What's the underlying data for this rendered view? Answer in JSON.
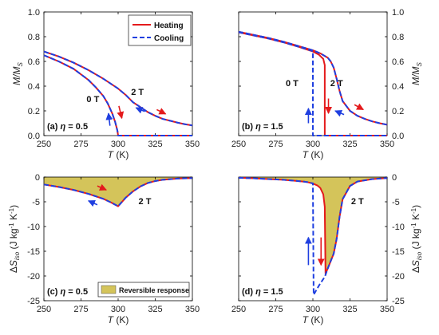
{
  "chart_data": [
    {
      "id": "a",
      "type": "line",
      "panel_label": "(a) η = 0.5",
      "xlabel": "T (K)",
      "ylabel": "M/M_S",
      "xlim": [
        250,
        350
      ],
      "ylim": [
        0,
        1
      ],
      "xticks": [
        250,
        275,
        300,
        325,
        350
      ],
      "yticks": [
        0,
        0.2,
        0.4,
        0.6,
        0.8,
        1.0
      ],
      "ytick_labels": [
        "0.0",
        "0.2",
        "0.4",
        "0.6",
        "0.8",
        "1.0"
      ],
      "y_axis_side": "left",
      "legend": {
        "placement": "top-right",
        "entries": [
          "Heating",
          "Cooling"
        ]
      },
      "series": [
        {
          "name": "Heating",
          "style": "solid",
          "color": "#e41a1c",
          "x": [
            250,
            260,
            270,
            280,
            285,
            290,
            293,
            296,
            298,
            299.5,
            300,
            350
          ],
          "y": [
            0.65,
            0.6,
            0.54,
            0.45,
            0.39,
            0.32,
            0.26,
            0.18,
            0.11,
            0.04,
            0.0,
            0.0
          ]
        },
        {
          "name": "Cooling",
          "style": "dashed",
          "color": "#1f3fe0",
          "x": [
            250,
            260,
            270,
            280,
            285,
            290,
            293,
            296,
            298,
            299.5,
            300,
            350
          ],
          "y": [
            0.65,
            0.6,
            0.54,
            0.45,
            0.39,
            0.32,
            0.26,
            0.18,
            0.11,
            0.04,
            0.0,
            0.0
          ]
        },
        {
          "name": "Heating",
          "style": "solid",
          "color": "#e41a1c",
          "x": [
            250,
            260,
            270,
            280,
            290,
            300,
            305,
            310,
            315,
            320,
            325,
            330,
            335,
            340,
            345,
            350
          ],
          "y": [
            0.68,
            0.64,
            0.59,
            0.53,
            0.46,
            0.38,
            0.33,
            0.27,
            0.23,
            0.19,
            0.16,
            0.135,
            0.12,
            0.105,
            0.092,
            0.082
          ]
        },
        {
          "name": "Cooling",
          "style": "dashed",
          "color": "#1f3fe0",
          "x": [
            250,
            260,
            270,
            280,
            290,
            300,
            305,
            310,
            315,
            320,
            325,
            330,
            335,
            340,
            345,
            350
          ],
          "y": [
            0.68,
            0.64,
            0.59,
            0.53,
            0.46,
            0.38,
            0.33,
            0.27,
            0.23,
            0.19,
            0.16,
            0.135,
            0.12,
            0.105,
            0.092,
            0.082
          ]
        }
      ],
      "annotations": [
        {
          "text": "0 T",
          "x": 283,
          "y": 0.27
        },
        {
          "text": "2 T",
          "x": 313,
          "y": 0.33
        }
      ],
      "arrows": [
        {
          "color": "#e41a1c",
          "x1": 300.5,
          "y1": 0.24,
          "x2": 302.5,
          "y2": 0.14
        },
        {
          "color": "#1f3fe0",
          "x1": 294.5,
          "y1": 0.08,
          "x2": 293.5,
          "y2": 0.18
        },
        {
          "color": "#e41a1c",
          "x1": 326,
          "y1": 0.21,
          "x2": 332,
          "y2": 0.175
        },
        {
          "color": "#1f3fe0",
          "x1": 318,
          "y1": 0.195,
          "x2": 312,
          "y2": 0.225
        }
      ]
    },
    {
      "id": "b",
      "type": "line",
      "panel_label": "(b) η = 1.5",
      "xlabel": "T (K)",
      "ylabel": "M/M_S",
      "xlim": [
        250,
        350
      ],
      "ylim": [
        0,
        1
      ],
      "xticks": [
        250,
        275,
        300,
        325,
        350
      ],
      "yticks": [
        0,
        0.2,
        0.4,
        0.6,
        0.8,
        1.0
      ],
      "ytick_labels": [
        "0.0",
        "0.2",
        "0.4",
        "0.6",
        "0.8",
        "1.0"
      ],
      "y_axis_side": "right",
      "series": [
        {
          "name": "Heating",
          "style": "solid",
          "color": "#e41a1c",
          "x": [
            250,
            260,
            270,
            280,
            290,
            300,
            304,
            307,
            308,
            308,
            350
          ],
          "y": [
            0.835,
            0.81,
            0.785,
            0.755,
            0.72,
            0.68,
            0.655,
            0.62,
            0.57,
            0.0,
            0.0
          ]
        },
        {
          "name": "Cooling",
          "style": "dashed",
          "color": "#1f3fe0",
          "x": [
            250,
            260,
            270,
            280,
            290,
            299.5,
            300,
            300,
            350
          ],
          "y": [
            0.835,
            0.81,
            0.785,
            0.755,
            0.72,
            0.685,
            0.685,
            0.0,
            0.0
          ]
        },
        {
          "name": "Heating",
          "style": "solid",
          "color": "#e41a1c",
          "x": [
            250,
            260,
            270,
            280,
            290,
            300,
            305,
            310,
            312,
            314,
            316,
            318,
            320,
            325,
            330,
            335,
            340,
            345,
            350
          ],
          "y": [
            0.84,
            0.815,
            0.79,
            0.76,
            0.725,
            0.69,
            0.665,
            0.63,
            0.6,
            0.55,
            0.46,
            0.36,
            0.28,
            0.2,
            0.16,
            0.135,
            0.115,
            0.1,
            0.088
          ]
        },
        {
          "name": "Cooling",
          "style": "dashed",
          "color": "#1f3fe0",
          "x": [
            250,
            260,
            270,
            280,
            290,
            300,
            305,
            310,
            312,
            314,
            316,
            318,
            320,
            325,
            330,
            335,
            340,
            345,
            350
          ],
          "y": [
            0.84,
            0.815,
            0.79,
            0.76,
            0.725,
            0.69,
            0.665,
            0.63,
            0.6,
            0.55,
            0.46,
            0.36,
            0.28,
            0.2,
            0.16,
            0.135,
            0.115,
            0.1,
            0.088
          ]
        }
      ],
      "annotations": [
        {
          "text": "0 T",
          "x": 286,
          "y": 0.4
        },
        {
          "text": "2 T",
          "x": 316,
          "y": 0.4
        }
      ],
      "arrows": [
        {
          "color": "#e41a1c",
          "x1": 310.5,
          "y1": 0.3,
          "x2": 310.5,
          "y2": 0.18
        },
        {
          "color": "#1f3fe0",
          "x1": 297,
          "y1": 0.1,
          "x2": 297,
          "y2": 0.22
        },
        {
          "color": "#e41a1c",
          "x1": 328,
          "y1": 0.25,
          "x2": 334,
          "y2": 0.21
        },
        {
          "color": "#1f3fe0",
          "x1": 321,
          "y1": 0.17,
          "x2": 315,
          "y2": 0.2
        }
      ]
    },
    {
      "id": "c",
      "type": "area",
      "panel_label": "(c) η = 0.5",
      "xlabel": "T (K)",
      "ylabel": "ΔS_iso (J kg^-1 K^-1)",
      "xlim": [
        250,
        350
      ],
      "ylim": [
        -25,
        0
      ],
      "xticks": [
        250,
        275,
        300,
        325,
        350
      ],
      "yticks": [
        -25,
        -20,
        -15,
        -10,
        -5,
        0
      ],
      "ytick_labels": [
        "-25",
        "-20",
        "-15",
        "-10",
        "-5",
        "0"
      ],
      "y_axis_side": "left",
      "fill_color": "#d4c45a",
      "legend": {
        "placement": "bottom-center",
        "entries": [
          "Reversible response"
        ]
      },
      "series": [
        {
          "name": "Heating",
          "style": "solid",
          "color": "#e41a1c",
          "x": [
            250,
            260,
            270,
            280,
            290,
            295,
            300,
            305,
            310,
            315,
            320,
            325,
            330,
            340,
            350
          ],
          "y": [
            -1.5,
            -2.0,
            -2.6,
            -3.4,
            -4.4,
            -5.1,
            -5.9,
            -4.2,
            -2.9,
            -1.9,
            -1.2,
            -0.8,
            -0.55,
            -0.3,
            -0.2
          ]
        },
        {
          "name": "Cooling",
          "style": "dashed",
          "color": "#1f3fe0",
          "x": [
            250,
            260,
            270,
            280,
            290,
            295,
            300,
            305,
            310,
            315,
            320,
            325,
            330,
            340,
            350
          ],
          "y": [
            -1.5,
            -2.0,
            -2.6,
            -3.4,
            -4.4,
            -5.1,
            -5.9,
            -4.2,
            -2.9,
            -1.9,
            -1.2,
            -0.8,
            -0.55,
            -0.3,
            -0.2
          ]
        }
      ],
      "annotations": [
        {
          "text": "2 T",
          "x": 318,
          "y": -5.5
        }
      ],
      "arrows": [
        {
          "color": "#e41a1c",
          "x1": 286,
          "y1": -1.8,
          "x2": 292,
          "y2": -2.6
        },
        {
          "color": "#1f3fe0",
          "x1": 286,
          "y1": -5.6,
          "x2": 280,
          "y2": -4.8
        }
      ]
    },
    {
      "id": "d",
      "type": "area",
      "panel_label": "(d) η = 1.5",
      "xlabel": "T (K)",
      "ylabel": "ΔS_iso (J kg^-1 K^-1)",
      "xlim": [
        250,
        350
      ],
      "ylim": [
        -25,
        0
      ],
      "xticks": [
        250,
        275,
        300,
        325,
        350
      ],
      "yticks": [
        -25,
        -20,
        -15,
        -10,
        -5,
        0
      ],
      "ytick_labels": [
        "-25",
        "-20",
        "-15",
        "-10",
        "-5",
        "0"
      ],
      "y_axis_side": "right",
      "fill_color": "#d4c45a",
      "series": [
        {
          "name": "Heating",
          "style": "solid",
          "color": "#e41a1c",
          "x": [
            250,
            260,
            270,
            280,
            290,
            296,
            300,
            303,
            305,
            307,
            308,
            308.5,
            310,
            312,
            314,
            316,
            318,
            320,
            325,
            330,
            340,
            350
          ],
          "y": [
            -0.15,
            -0.25,
            -0.4,
            -0.55,
            -0.8,
            -1.0,
            -1.3,
            -1.7,
            -2.2,
            -3.5,
            -6.0,
            -19.5,
            -18.5,
            -17.0,
            -15.5,
            -12.5,
            -8.0,
            -4.5,
            -1.8,
            -0.9,
            -0.4,
            -0.2
          ]
        },
        {
          "name": "Cooling",
          "style": "dashed",
          "color": "#1f3fe0",
          "x": [
            250,
            260,
            270,
            280,
            290,
            296,
            299.5,
            300,
            300.5,
            303,
            305,
            308,
            310,
            312,
            314,
            316,
            318,
            320,
            325,
            330,
            340,
            350
          ],
          "y": [
            -0.15,
            -0.25,
            -0.4,
            -0.55,
            -0.8,
            -1.0,
            -1.25,
            -1.25,
            -23.8,
            -22.5,
            -21.5,
            -20.2,
            -18.5,
            -17.0,
            -15.5,
            -12.5,
            -8.0,
            -4.5,
            -1.8,
            -0.9,
            -0.4,
            -0.2
          ]
        }
      ],
      "annotations": [
        {
          "text": "2 T",
          "x": 330,
          "y": -5.5
        }
      ],
      "arrows": [
        {
          "color": "#e41a1c",
          "x1": 305.5,
          "y1": -12.2,
          "x2": 305.5,
          "y2": -17.8
        },
        {
          "color": "#1f3fe0",
          "x1": 297,
          "y1": -17.8,
          "x2": 297,
          "y2": -12.2
        }
      ]
    }
  ]
}
